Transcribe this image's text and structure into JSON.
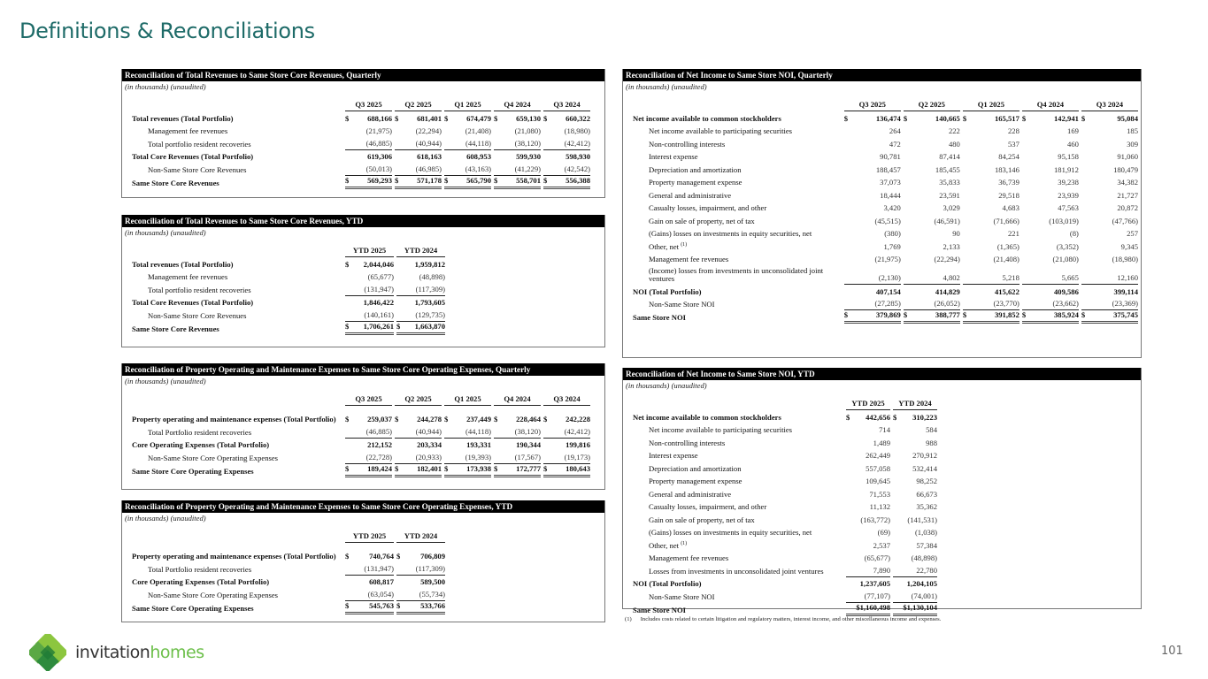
{
  "page": {
    "title": "Definitions & Reconciliations",
    "page_number": "101",
    "logo_text_1": "invitation",
    "logo_text_2": "homes",
    "footnote_marker": "(1)",
    "footnote": "Includes costs related to certain litigation and regulatory matters, interest income, and other miscellaneous income and expenses.",
    "colors": {
      "title": "#1e6b68",
      "logo_green": "#6cbf4a",
      "header_bar": "#000000"
    }
  },
  "panels": [
    {
      "title": "Reconciliation of Total Revenues to Same Store Core Revenues, Quarterly",
      "subtitle": "(in thousands) (unaudited)",
      "columns": [
        "Q3 2025",
        "Q2 2025",
        "Q1 2025",
        "Q4 2024",
        "Q3 2024"
      ],
      "rows": [
        {
          "label": "Total revenues (Total Portfolio)",
          "bold": true,
          "values": [
            "$ 688,166",
            "$ 681,401",
            "$ 674,479",
            "$ 659,130",
            "$ 660,322"
          ]
        },
        {
          "label": "Management fee revenues",
          "indent": true,
          "values": [
            "(21,975)",
            "(22,294)",
            "(21,408)",
            "(21,080)",
            "(18,980)"
          ]
        },
        {
          "label": "Total portfolio resident recoveries",
          "indent": true,
          "underline": "single",
          "values": [
            "(46,885)",
            "(40,944)",
            "(44,118)",
            "(38,120)",
            "(42,412)"
          ]
        },
        {
          "label": "Total Core Revenues (Total Portfolio)",
          "bold": true,
          "values": [
            "619,306",
            "618,163",
            "608,953",
            "599,930",
            "598,930"
          ]
        },
        {
          "label": "Non-Same Store Core Revenues",
          "indent": true,
          "underline": "single",
          "values": [
            "(50,013)",
            "(46,985)",
            "(43,163)",
            "(41,229)",
            "(42,542)"
          ]
        },
        {
          "label": "Same Store Core Revenues",
          "bold": true,
          "underline": "double",
          "values": [
            "$ 569,293",
            "$ 571,178",
            "$ 565,790",
            "$ 558,701",
            "$ 556,388"
          ]
        }
      ]
    },
    {
      "title": "Reconciliation of Total Revenues to Same Store Core Revenues,  YTD",
      "subtitle": "(in thousands) (unaudited)",
      "columns": [
        "YTD 2025",
        "YTD 2024"
      ],
      "rows": [
        {
          "label": "Total revenues (Total Portfolio)",
          "bold": true,
          "values": [
            "$ 2,044,046",
            "1,959,812"
          ]
        },
        {
          "label": "Management fee revenues",
          "indent": true,
          "values": [
            "(65,677)",
            "(48,898)"
          ]
        },
        {
          "label": "Total portfolio resident recoveries",
          "indent": true,
          "underline": "single",
          "values": [
            "(131,947)",
            "(117,309)"
          ]
        },
        {
          "label": "Total Core Revenues (Total Portfolio)",
          "bold": true,
          "values": [
            "1,846,422",
            "1,793,605"
          ]
        },
        {
          "label": "Non-Same Store Core Revenues",
          "indent": true,
          "underline": "single",
          "values": [
            "(140,161)",
            "(129,735)"
          ]
        },
        {
          "label": "Same Store Core Revenues",
          "bold": true,
          "underline": "double",
          "values": [
            "$ 1,706,261",
            "$ 1,663,870"
          ]
        }
      ]
    },
    {
      "title": "Reconciliation of Property Operating and Maintenance Expenses to Same Store Core Operating Expenses, Quarterly",
      "subtitle": "(in thousands) (unaudited)",
      "columns": [
        "Q3 2025",
        "Q2 2025",
        "Q1 2025",
        "Q4 2024",
        "Q3 2024"
      ],
      "rows": [
        {
          "label": "Property operating and maintenance expenses (Total Portfolio)",
          "bold": true,
          "wrap": true,
          "values": [
            "$ 259,037",
            "$ 244,278",
            "$ 237,449",
            "$ 228,464",
            "$ 242,228"
          ]
        },
        {
          "label": "Total Portfolio resident recoveries",
          "indent": true,
          "underline": "single",
          "values": [
            "(46,885)",
            "(40,944)",
            "(44,118)",
            "(38,120)",
            "(42,412)"
          ]
        },
        {
          "label": "Core Operating Expenses (Total Portfolio)",
          "bold": true,
          "values": [
            "212,152",
            "203,334",
            "193,331",
            "190,344",
            "199,816"
          ]
        },
        {
          "label": "Non-Same Store Core Operating Expenses",
          "indent": true,
          "underline": "single",
          "values": [
            "(22,728)",
            "(20,933)",
            "(19,393)",
            "(17,567)",
            "(19,173)"
          ]
        },
        {
          "label": "Same Store Core Operating Expenses",
          "bold": true,
          "underline": "double",
          "values": [
            "$ 189,424",
            "$ 182,401",
            "$ 173,938",
            "$ 172,777",
            "$ 180,643"
          ]
        }
      ]
    },
    {
      "title": "Reconciliation of Property Operating and Maintenance Expenses to Same Store Core Operating Expenses, YTD",
      "subtitle": "(in thousands) (unaudited)",
      "columns": [
        "YTD 2025",
        "YTD 2024"
      ],
      "rows": [
        {
          "label": "Property operating and maintenance expenses (Total Portfolio)",
          "bold": true,
          "wrap": true,
          "values": [
            "$ 740,764",
            "$ 706,809"
          ]
        },
        {
          "label": "Total Portfolio resident recoveries",
          "indent": true,
          "underline": "single",
          "values": [
            "(131,947)",
            "(117,309)"
          ]
        },
        {
          "label": "Core Operating Expenses (Total Portfolio)",
          "bold": true,
          "values": [
            "608,817",
            "589,500"
          ]
        },
        {
          "label": "Non-Same Store Core Operating Expenses",
          "indent": true,
          "underline": "single",
          "values": [
            "(63,054)",
            "(55,734)"
          ]
        },
        {
          "label": "Same Store Core Operating Expenses",
          "bold": true,
          "underline": "double",
          "values": [
            "$ 545,763",
            "$ 533,766"
          ]
        }
      ]
    },
    {
      "title": "Reconciliation of Net Income to Same Store NOI, Quarterly",
      "subtitle": "(in thousands) (unaudited)",
      "columns": [
        "Q3 2025",
        "Q2 2025",
        "Q1 2025",
        "Q4 2024",
        "Q3 2024"
      ],
      "rows": [
        {
          "label": "Net income available to common stockholders",
          "bold": true,
          "values": [
            "$ 136,474",
            "$ 140,665",
            "$ 165,517",
            "$ 142,941",
            "$ 95,084"
          ]
        },
        {
          "label": "Net income available to participating securities",
          "indent": true,
          "values": [
            "264",
            "222",
            "228",
            "169",
            "185"
          ]
        },
        {
          "label": "Non-controlling interests",
          "indent": true,
          "values": [
            "472",
            "480",
            "537",
            "460",
            "309"
          ]
        },
        {
          "label": "Interest expense",
          "indent": true,
          "values": [
            "90,781",
            "87,414",
            "84,254",
            "95,158",
            "91,060"
          ]
        },
        {
          "label": "Depreciation and amortization",
          "indent": true,
          "values": [
            "188,457",
            "185,455",
            "183,146",
            "181,912",
            "180,479"
          ]
        },
        {
          "label": "Property management expense",
          "indent": true,
          "values": [
            "37,073",
            "35,833",
            "36,739",
            "39,238",
            "34,382"
          ]
        },
        {
          "label": "General and administrative",
          "indent": true,
          "values": [
            "18,444",
            "23,591",
            "29,518",
            "23,939",
            "21,727"
          ]
        },
        {
          "label": "Casualty losses, impairment, and other",
          "indent": true,
          "values": [
            "3,420",
            "3,029",
            "4,683",
            "47,563",
            "20,872"
          ]
        },
        {
          "label": "Gain on sale of property, net of tax",
          "indent": true,
          "values": [
            "(45,515)",
            "(46,591)",
            "(71,666)",
            "(103,019)",
            "(47,766)"
          ]
        },
        {
          "label": "(Gains) losses on investments in equity securities, net",
          "indent": true,
          "values": [
            "(380)",
            "90",
            "221",
            "(8)",
            "257"
          ]
        },
        {
          "label": "Other, net",
          "note": "(1)",
          "indent": true,
          "values": [
            "1,769",
            "2,133",
            "(1,365)",
            "(3,352)",
            "9,345"
          ]
        },
        {
          "label": "Management fee revenues",
          "indent": true,
          "values": [
            "(21,975)",
            "(22,294)",
            "(21,408)",
            "(21,080)",
            "(18,980)"
          ]
        },
        {
          "label": "(Income) losses from investments in unconsolidated joint ventures",
          "indent": true,
          "wrap": true,
          "underline": "single",
          "values": [
            "(2,130)",
            "4,802",
            "5,218",
            "5,665",
            "12,160"
          ]
        },
        {
          "label": "NOI (Total Portfolio)",
          "bold": true,
          "values": [
            "407,154",
            "414,829",
            "415,622",
            "409,586",
            "399,114"
          ]
        },
        {
          "label": "Non-Same Store NOI",
          "indent": true,
          "underline": "single",
          "values": [
            "(27,285)",
            "(26,052)",
            "(23,770)",
            "(23,662)",
            "(23,369)"
          ]
        },
        {
          "label": "Same Store NOI",
          "bold": true,
          "underline": "double",
          "values": [
            "$ 379,869",
            "$ 388,777",
            "$ 391,852",
            "$ 385,924",
            "$ 375,745"
          ]
        }
      ]
    },
    {
      "title": "Reconciliation of Net Income to Same Store NOI, YTD",
      "subtitle": "(in thousands) (unaudited)",
      "columns": [
        "YTD 2025",
        "YTD 2024"
      ],
      "rows": [
        {
          "label": "Net income available to common stockholders",
          "bold": true,
          "values": [
            "$ 442,656",
            "$ 310,223"
          ]
        },
        {
          "label": "Net income available to participating securities",
          "indent": true,
          "values": [
            "714",
            "584"
          ]
        },
        {
          "label": "Non-controlling interests",
          "indent": true,
          "values": [
            "1,489",
            "988"
          ]
        },
        {
          "label": "Interest expense",
          "indent": true,
          "values": [
            "262,449",
            "270,912"
          ]
        },
        {
          "label": "Depreciation and amortization",
          "indent": true,
          "values": [
            "557,058",
            "532,414"
          ]
        },
        {
          "label": "Property management expense",
          "indent": true,
          "values": [
            "109,645",
            "98,252"
          ]
        },
        {
          "label": "General and administrative",
          "indent": true,
          "values": [
            "71,553",
            "66,673"
          ]
        },
        {
          "label": "Casualty losses, impairment, and other",
          "indent": true,
          "values": [
            "11,132",
            "35,362"
          ]
        },
        {
          "label": "Gain on sale of property, net of tax",
          "indent": true,
          "values": [
            "(163,772)",
            "(141,531)"
          ]
        },
        {
          "label": "(Gains) losses on investments in equity securities, net",
          "indent": true,
          "values": [
            "(69)",
            "(1,038)"
          ]
        },
        {
          "label": "Other, net",
          "note": "(1)",
          "indent": true,
          "values": [
            "2,537",
            "57,384"
          ]
        },
        {
          "label": "Management fee revenues",
          "indent": true,
          "values": [
            "(65,677)",
            "(48,898)"
          ]
        },
        {
          "label": "Losses from investments in unconsolidated joint ventures",
          "indent": true,
          "underline": "single",
          "values": [
            "7,890",
            "22,780"
          ]
        },
        {
          "label": "NOI (Total Portfolio)",
          "bold": true,
          "values": [
            "1,237,605",
            "1,204,105"
          ]
        },
        {
          "label": "Non-Same Store NOI",
          "indent": true,
          "underline": "single",
          "values": [
            "(77,107)",
            "(74,001)"
          ]
        },
        {
          "label": "Same Store NOI",
          "bold": true,
          "underline": "double",
          "values": [
            "$1,160,498",
            "$1,130,104"
          ]
        }
      ]
    }
  ]
}
